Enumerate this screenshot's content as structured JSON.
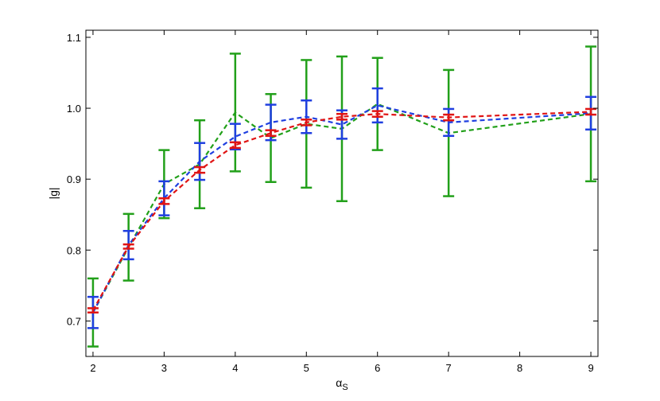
{
  "chart_data": {
    "type": "line",
    "title": "",
    "xlabel": "α",
    "xlabel_sub": "S",
    "ylabel": "|g|",
    "xlim": [
      1.9,
      9.1
    ],
    "ylim": [
      0.65,
      1.11
    ],
    "xticks": [
      2,
      3,
      4,
      5,
      6,
      7,
      8,
      9
    ],
    "yticks": [
      0.7,
      0.8,
      0.9,
      1.0,
      1.1
    ],
    "xtick_labels": [
      "2",
      "3",
      "4",
      "5",
      "6",
      "7",
      "8",
      "9"
    ],
    "ytick_labels": [
      "0.7",
      "0.8",
      "0.9",
      "1.0",
      "1.1"
    ],
    "grid": false,
    "line_style": "dashed",
    "series": [
      {
        "color": "#22a01a",
        "x": [
          2,
          2.5,
          3,
          3.5,
          4,
          4.5,
          5,
          5.5,
          6,
          7,
          9
        ],
        "y": [
          0.712,
          0.804,
          0.893,
          0.921,
          0.994,
          0.958,
          0.978,
          0.971,
          1.006,
          0.965,
          0.992
        ],
        "err": [
          0.048,
          0.047,
          0.048,
          0.062,
          0.083,
          0.062,
          0.09,
          0.102,
          0.065,
          0.089,
          0.095
        ]
      },
      {
        "color": "#1f3fe0",
        "x": [
          2,
          2.5,
          3,
          3.5,
          4,
          4.5,
          5,
          5.5,
          6,
          7,
          9
        ],
        "y": [
          0.712,
          0.807,
          0.873,
          0.925,
          0.96,
          0.98,
          0.988,
          0.977,
          1.004,
          0.98,
          0.993
        ],
        "err": [
          0.022,
          0.02,
          0.024,
          0.026,
          0.018,
          0.025,
          0.023,
          0.02,
          0.024,
          0.019,
          0.023
        ]
      },
      {
        "color": "#e01414",
        "x": [
          2,
          2.5,
          3,
          3.5,
          4,
          4.5,
          5,
          5.5,
          6,
          7,
          9
        ],
        "y": [
          0.715,
          0.805,
          0.869,
          0.913,
          0.948,
          0.965,
          0.98,
          0.988,
          0.992,
          0.987,
          0.995
        ],
        "err": [
          0.003,
          0.003,
          0.004,
          0.004,
          0.004,
          0.004,
          0.004,
          0.004,
          0.004,
          0.004,
          0.004
        ]
      }
    ]
  }
}
